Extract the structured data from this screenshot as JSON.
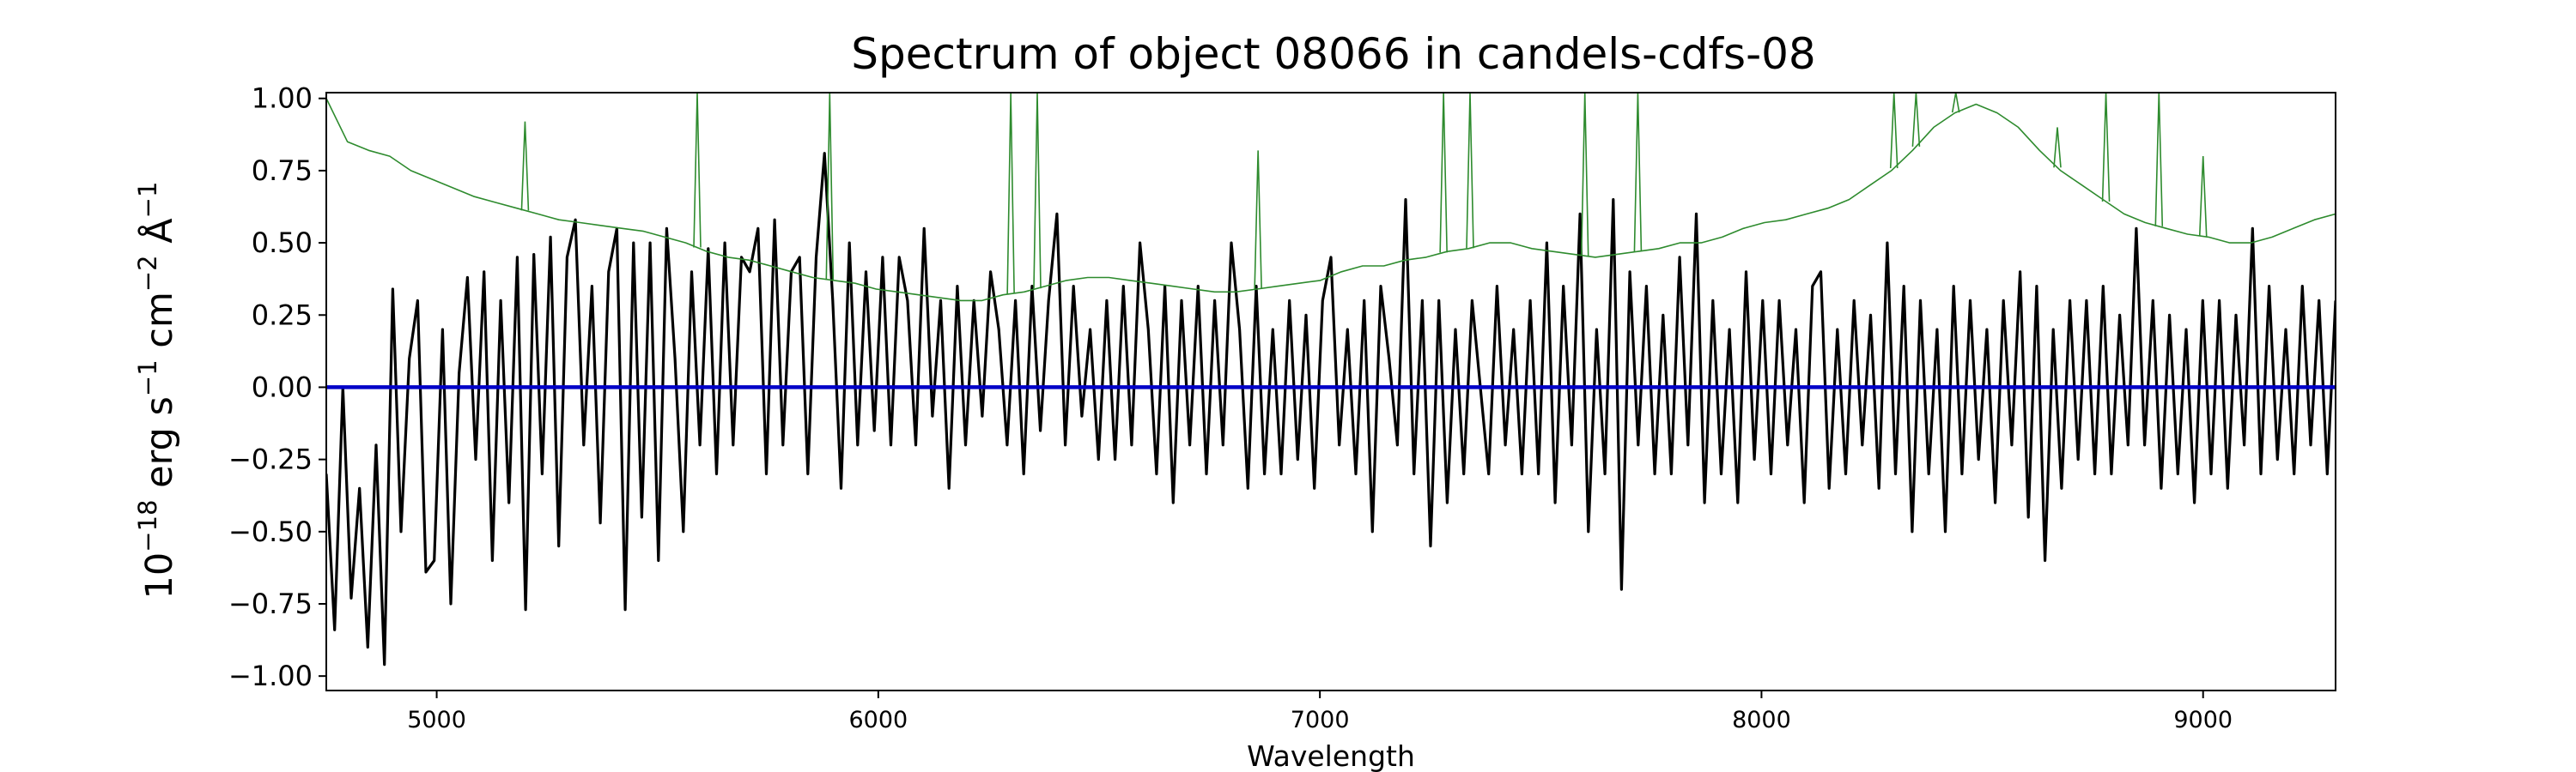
{
  "chart_data": {
    "type": "line",
    "title": "Spectrum of object 08066 in candels-cdfs-08",
    "xlabel": "Wavelength",
    "ylabel": {
      "prefix": "10",
      "exp1": "−18",
      "mid1": " erg s",
      "exp2": "−1",
      "mid2": " cm",
      "exp3": "−2",
      "mid3": " Å",
      "exp4": "−1"
    },
    "xlim": [
      4750,
      9300
    ],
    "ylim": [
      -1.05,
      1.02
    ],
    "grid": false,
    "x_ticks": [
      {
        "value": 5000,
        "label": "5000"
      },
      {
        "value": 6000,
        "label": "6000"
      },
      {
        "value": 7000,
        "label": "7000"
      },
      {
        "value": 8000,
        "label": "8000"
      },
      {
        "value": 9000,
        "label": "9000"
      }
    ],
    "y_ticks": [
      {
        "value": 1.0,
        "label": "1.00"
      },
      {
        "value": 0.75,
        "label": "0.75"
      },
      {
        "value": 0.5,
        "label": "0.50"
      },
      {
        "value": 0.25,
        "label": "0.25"
      },
      {
        "value": 0.0,
        "label": "0.00"
      },
      {
        "value": -0.25,
        "label": "−0.25"
      },
      {
        "value": -0.5,
        "label": "−0.50"
      },
      {
        "value": -0.75,
        "label": "−0.75"
      },
      {
        "value": -1.0,
        "label": "−1.00"
      }
    ],
    "series": [
      {
        "role": "flux",
        "color": "#000000",
        "x_range": [
          4750,
          9300
        ],
        "n_points": 1100,
        "values": [
          -0.3,
          -0.84,
          0.0,
          -0.73,
          -0.35,
          -0.9,
          -0.2,
          -0.96,
          0.34,
          -0.5,
          0.1,
          0.3,
          -0.64,
          -0.6,
          0.2,
          -0.75,
          0.05,
          0.38,
          -0.25,
          0.4,
          -0.6,
          0.3,
          -0.4,
          0.45,
          -0.77,
          0.46,
          -0.3,
          0.52,
          -0.55,
          0.45,
          0.58,
          -0.2,
          0.35,
          -0.47,
          0.4,
          0.55,
          -0.77,
          0.5,
          -0.45,
          0.5,
          -0.6,
          0.55,
          0.1,
          -0.5,
          0.4,
          -0.2,
          0.48,
          -0.3,
          0.5,
          -0.2,
          0.45,
          0.4,
          0.55,
          -0.3,
          0.58,
          -0.2,
          0.4,
          0.45,
          -0.3,
          0.45,
          0.81,
          0.3,
          -0.35,
          0.5,
          -0.2,
          0.4,
          -0.15,
          0.45,
          -0.2,
          0.45,
          0.3,
          -0.2,
          0.55,
          -0.1,
          0.3,
          -0.35,
          0.35,
          -0.2,
          0.3,
          -0.1,
          0.4,
          0.2,
          -0.2,
          0.3,
          -0.3,
          0.35,
          -0.15,
          0.3,
          0.6,
          -0.2,
          0.35,
          -0.1,
          0.2,
          -0.25,
          0.3,
          -0.25,
          0.35,
          -0.2,
          0.5,
          0.2,
          -0.3,
          0.35,
          -0.4,
          0.3,
          -0.2,
          0.35,
          -0.3,
          0.3,
          -0.2,
          0.5,
          0.2,
          -0.35,
          0.35,
          -0.3,
          0.2,
          -0.3,
          0.3,
          -0.25,
          0.25,
          -0.35,
          0.3,
          0.45,
          -0.2,
          0.2,
          -0.3,
          0.3,
          -0.5,
          0.35,
          0.1,
          -0.2,
          0.65,
          -0.3,
          0.3,
          -0.55,
          0.3,
          -0.4,
          0.2,
          -0.3,
          0.3,
          0.0,
          -0.3,
          0.35,
          -0.2,
          0.2,
          -0.3,
          0.3,
          -0.3,
          0.5,
          -0.4,
          0.35,
          -0.2,
          0.6,
          -0.5,
          0.2,
          -0.3,
          0.65,
          -0.7,
          0.4,
          -0.2,
          0.35,
          -0.3,
          0.25,
          -0.3,
          0.45,
          -0.2,
          0.6,
          -0.4,
          0.3,
          -0.3,
          0.2,
          -0.4,
          0.4,
          -0.25,
          0.3,
          -0.3,
          0.3,
          -0.2,
          0.2,
          -0.4,
          0.35,
          0.4,
          -0.35,
          0.2,
          -0.3,
          0.3,
          -0.2,
          0.25,
          -0.35,
          0.5,
          -0.3,
          0.35,
          -0.5,
          0.3,
          -0.3,
          0.2,
          -0.5,
          0.35,
          -0.3,
          0.3,
          -0.25,
          0.2,
          -0.4,
          0.3,
          -0.2,
          0.4,
          -0.45,
          0.35,
          -0.6,
          0.2,
          -0.35,
          0.3,
          -0.25,
          0.3,
          -0.3,
          0.35,
          -0.3,
          0.25,
          -0.2,
          0.55,
          -0.2,
          0.3,
          -0.35,
          0.25,
          -0.3,
          0.2,
          -0.4,
          0.3,
          -0.3,
          0.3,
          -0.35,
          0.25,
          -0.2,
          0.55,
          -0.3,
          0.35,
          -0.25,
          0.2,
          -0.3,
          0.35,
          -0.2,
          0.3,
          -0.3,
          0.3
        ],
        "interpolation": "linear-over-x_range"
      },
      {
        "role": "error",
        "color": "#2e8b2e",
        "x_range": [
          4750,
          9300
        ],
        "values": [
          1.0,
          0.85,
          0.82,
          0.8,
          0.75,
          0.72,
          0.69,
          0.66,
          0.64,
          0.62,
          0.6,
          0.58,
          0.57,
          0.56,
          0.55,
          0.54,
          0.52,
          0.5,
          0.47,
          0.45,
          0.44,
          0.42,
          0.4,
          0.38,
          0.37,
          0.36,
          0.34,
          0.33,
          0.32,
          0.31,
          0.3,
          0.3,
          0.32,
          0.33,
          0.35,
          0.37,
          0.38,
          0.38,
          0.37,
          0.36,
          0.35,
          0.34,
          0.33,
          0.33,
          0.34,
          0.35,
          0.36,
          0.37,
          0.4,
          0.42,
          0.42,
          0.44,
          0.45,
          0.47,
          0.48,
          0.5,
          0.5,
          0.48,
          0.47,
          0.46,
          0.45,
          0.46,
          0.47,
          0.48,
          0.5,
          0.5,
          0.52,
          0.55,
          0.57,
          0.58,
          0.6,
          0.62,
          0.65,
          0.7,
          0.75,
          0.82,
          0.9,
          0.95,
          0.98,
          0.95,
          0.9,
          0.82,
          0.75,
          0.7,
          0.65,
          0.6,
          0.57,
          0.55,
          0.53,
          0.52,
          0.5,
          0.5,
          0.52,
          0.55,
          0.58,
          0.6
        ],
        "interpolation": "linear-over-x_range",
        "spikes": [
          {
            "x": 5200,
            "y": 0.92
          },
          {
            "x": 5590,
            "y": 1.02
          },
          {
            "x": 5890,
            "y": 1.02
          },
          {
            "x": 6300,
            "y": 1.02
          },
          {
            "x": 6360,
            "y": 1.02
          },
          {
            "x": 6860,
            "y": 0.82
          },
          {
            "x": 7280,
            "y": 1.02
          },
          {
            "x": 7340,
            "y": 1.02
          },
          {
            "x": 7600,
            "y": 1.02
          },
          {
            "x": 7720,
            "y": 1.02
          },
          {
            "x": 8300,
            "y": 1.02
          },
          {
            "x": 8350,
            "y": 1.02
          },
          {
            "x": 8440,
            "y": 1.02
          },
          {
            "x": 8670,
            "y": 0.9
          },
          {
            "x": 8780,
            "y": 1.02
          },
          {
            "x": 8900,
            "y": 1.02
          },
          {
            "x": 9000,
            "y": 0.8
          }
        ]
      },
      {
        "role": "model",
        "color": "#0000c8",
        "x": [
          4750,
          9300
        ],
        "values": [
          0.0,
          0.0
        ]
      }
    ]
  }
}
